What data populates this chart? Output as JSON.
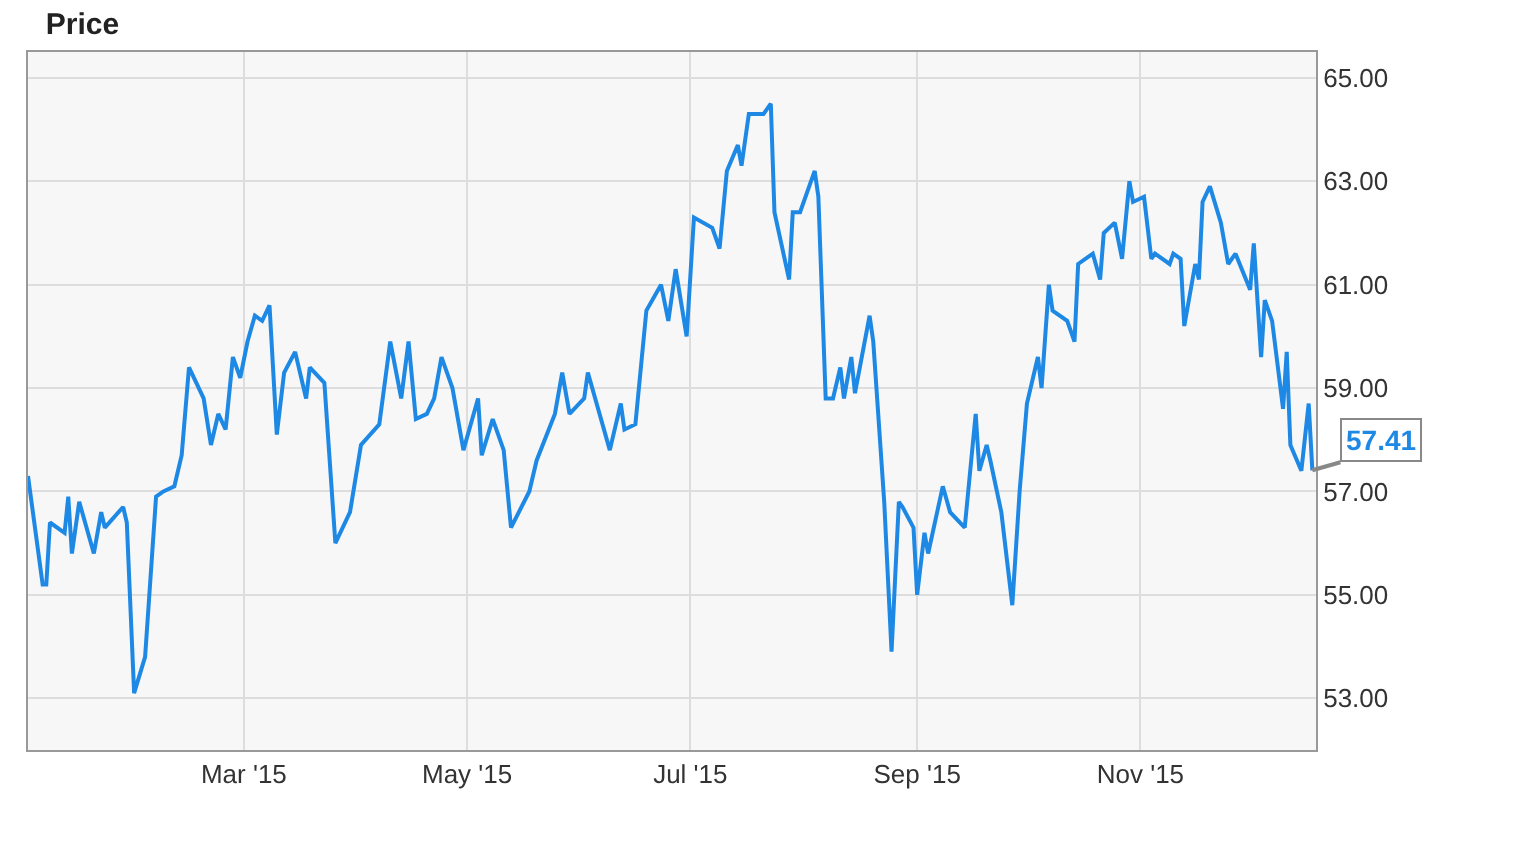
{
  "chart_data": {
    "type": "line",
    "title": "Price",
    "x": [
      "2015-01-01",
      "2015-01-05",
      "2015-01-06",
      "2015-01-07",
      "2015-01-11",
      "2015-01-12",
      "2015-01-13",
      "2015-01-15",
      "2015-01-19",
      "2015-01-21",
      "2015-01-22",
      "2015-01-27",
      "2015-01-28",
      "2015-01-30",
      "2015-02-02",
      "2015-02-05",
      "2015-02-07",
      "2015-02-10",
      "2015-02-12",
      "2015-02-14",
      "2015-02-18",
      "2015-02-20",
      "2015-02-22",
      "2015-02-24",
      "2015-02-26",
      "2015-02-28",
      "2015-03-02",
      "2015-03-04",
      "2015-03-06",
      "2015-03-08",
      "2015-03-10",
      "2015-03-12",
      "2015-03-15",
      "2015-03-18",
      "2015-03-19",
      "2015-03-23",
      "2015-03-26",
      "2015-03-30",
      "2015-04-02",
      "2015-04-07",
      "2015-04-10",
      "2015-04-13",
      "2015-04-15",
      "2015-04-17",
      "2015-04-20",
      "2015-04-22",
      "2015-04-24",
      "2015-04-27",
      "2015-04-30",
      "2015-05-04",
      "2015-05-05",
      "2015-05-08",
      "2015-05-11",
      "2015-05-13",
      "2015-05-18",
      "2015-05-20",
      "2015-05-25",
      "2015-05-27",
      "2015-05-29",
      "2015-06-02",
      "2015-06-03",
      "2015-06-09",
      "2015-06-12",
      "2015-06-13",
      "2015-06-16",
      "2015-06-19",
      "2015-06-23",
      "2015-06-25",
      "2015-06-27",
      "2015-06-30",
      "2015-07-02",
      "2015-07-07",
      "2015-07-09",
      "2015-07-11",
      "2015-07-14",
      "2015-07-15",
      "2015-07-17",
      "2015-07-21",
      "2015-07-23",
      "2015-07-24",
      "2015-07-28",
      "2015-07-29",
      "2015-07-31",
      "2015-08-04",
      "2015-08-05",
      "2015-08-07",
      "2015-08-09",
      "2015-08-11",
      "2015-08-12",
      "2015-08-14",
      "2015-08-15",
      "2015-08-19",
      "2015-08-20",
      "2015-08-23",
      "2015-08-25",
      "2015-08-27",
      "2015-08-28",
      "2015-08-31",
      "2015-09-01",
      "2015-09-03",
      "2015-09-04",
      "2015-09-08",
      "2015-09-10",
      "2015-09-14",
      "2015-09-17",
      "2015-09-18",
      "2015-09-20",
      "2015-09-21",
      "2015-09-24",
      "2015-09-27",
      "2015-09-29",
      "2015-10-01",
      "2015-10-04",
      "2015-10-05",
      "2015-10-07",
      "2015-10-08",
      "2015-10-12",
      "2015-10-14",
      "2015-10-15",
      "2015-10-19",
      "2015-10-21",
      "2015-10-22",
      "2015-10-25",
      "2015-10-27",
      "2015-10-29",
      "2015-10-30",
      "2015-11-02",
      "2015-11-04",
      "2015-11-05",
      "2015-11-09",
      "2015-11-10",
      "2015-11-12",
      "2015-11-13",
      "2015-11-16",
      "2015-11-17",
      "2015-11-18",
      "2015-11-20",
      "2015-11-23",
      "2015-11-25",
      "2015-11-27",
      "2015-12-01",
      "2015-12-02",
      "2015-12-04",
      "2015-12-05",
      "2015-12-07",
      "2015-12-10",
      "2015-12-11",
      "2015-12-12",
      "2015-12-15",
      "2015-12-17",
      "2015-12-18"
    ],
    "series": [
      {
        "color": "#1e88e5",
        "values": [
          57.3,
          55.2,
          55.2,
          56.4,
          56.2,
          56.9,
          55.8,
          56.8,
          55.8,
          56.6,
          56.3,
          56.7,
          56.4,
          53.1,
          53.8,
          56.9,
          57.0,
          57.1,
          57.7,
          59.4,
          58.8,
          57.9,
          58.5,
          58.2,
          59.6,
          59.2,
          59.9,
          60.4,
          60.3,
          60.6,
          58.1,
          59.3,
          59.7,
          58.8,
          59.4,
          59.1,
          56.0,
          56.6,
          57.9,
          58.3,
          59.9,
          58.8,
          59.9,
          58.4,
          58.5,
          58.8,
          59.6,
          59.0,
          57.8,
          58.8,
          57.7,
          58.4,
          57.8,
          56.3,
          57.0,
          57.6,
          58.5,
          59.3,
          58.5,
          58.8,
          59.3,
          57.8,
          58.7,
          58.2,
          58.3,
          60.5,
          61.0,
          60.3,
          61.3,
          60.0,
          62.3,
          62.1,
          61.7,
          63.2,
          63.7,
          63.3,
          64.3,
          64.3,
          64.5,
          62.4,
          61.1,
          62.4,
          62.4,
          63.2,
          62.7,
          58.8,
          58.8,
          59.4,
          58.8,
          59.6,
          58.9,
          60.4,
          59.9,
          56.8,
          53.9,
          56.8,
          56.7,
          56.3,
          55.0,
          56.2,
          55.8,
          57.1,
          56.6,
          56.3,
          58.5,
          57.4,
          57.9,
          57.6,
          56.6,
          54.8,
          57.0,
          58.7,
          59.6,
          59.0,
          61.0,
          60.5,
          60.3,
          59.9,
          61.4,
          61.6,
          61.1,
          62.0,
          62.2,
          61.5,
          63.0,
          62.6,
          62.7,
          61.5,
          61.6,
          61.4,
          61.6,
          61.5,
          60.2,
          61.4,
          61.1,
          62.6,
          62.9,
          62.2,
          61.4,
          61.6,
          60.9,
          61.8,
          59.6,
          60.7,
          60.3,
          58.6,
          59.7,
          57.9,
          57.4,
          58.7,
          57.41
        ]
      }
    ],
    "xlim": [
      "2015-01-01",
      "2015-12-19"
    ],
    "xticks": [
      {
        "value": "2015-03-01",
        "label": "Mar '15"
      },
      {
        "value": "2015-05-01",
        "label": "May '15"
      },
      {
        "value": "2015-07-01",
        "label": "Jul '15"
      },
      {
        "value": "2015-09-01",
        "label": "Sep '15"
      },
      {
        "value": "2015-11-01",
        "label": "Nov '15"
      }
    ],
    "ylim": [
      52,
      65.5
    ],
    "yticks": [
      {
        "value": 53,
        "label": "53.00"
      },
      {
        "value": 55,
        "label": "55.00"
      },
      {
        "value": 57,
        "label": "57.00"
      },
      {
        "value": 59,
        "label": "59.00"
      },
      {
        "value": 61,
        "label": "61.00"
      },
      {
        "value": 63,
        "label": "63.00"
      },
      {
        "value": 65,
        "label": "65.00"
      }
    ],
    "grid": true,
    "annotations": [
      {
        "text": "57.41",
        "x": "2015-12-18",
        "y": 57.41
      }
    ]
  }
}
